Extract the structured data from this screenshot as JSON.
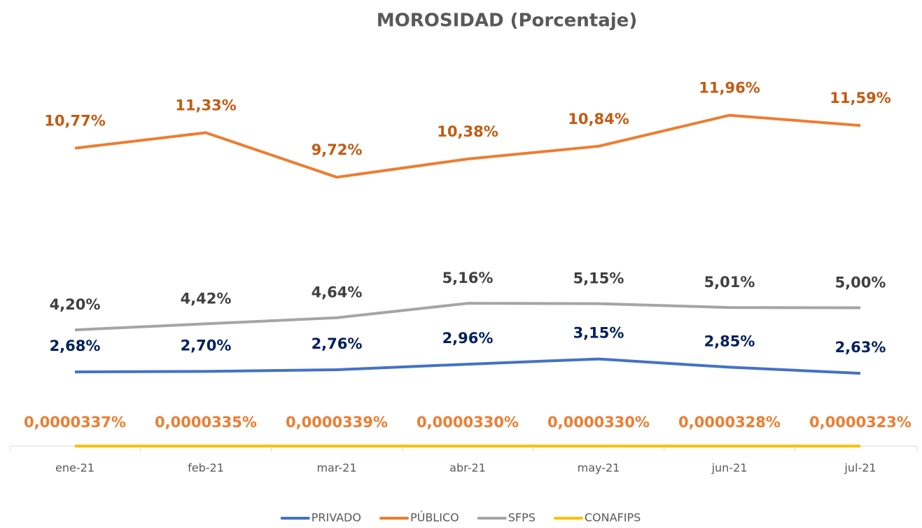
{
  "chart_data": {
    "type": "line",
    "title": "MOROSIDAD (Porcentaje)",
    "categories": [
      "ene-21",
      "feb-21",
      "mar-21",
      "abr-21",
      "may-21",
      "jun-21",
      "jul-21"
    ],
    "ylim": [
      0,
      14
    ],
    "legend": "bottom",
    "series": [
      {
        "name": "PRIVADO",
        "color": "#4472c4",
        "label_color": "#002060",
        "values": [
          2.68,
          2.7,
          2.76,
          2.96,
          3.15,
          2.85,
          2.63
        ],
        "value_labels": [
          "2,68%",
          "2,70%",
          "2,76%",
          "2,96%",
          "3,15%",
          "2,85%",
          "2,63%"
        ]
      },
      {
        "name": "PÚBLICO",
        "color": "#ed7d31",
        "label_color": "#c55a11",
        "values": [
          10.77,
          11.33,
          9.72,
          10.38,
          10.84,
          11.96,
          11.59
        ],
        "value_labels": [
          "10,77%",
          "11,33%",
          "9,72%",
          "10,38%",
          "10,84%",
          "11,96%",
          "11,59%"
        ]
      },
      {
        "name": "SFPS",
        "color": "#a5a5a5",
        "label_color": "#404040",
        "values": [
          4.2,
          4.42,
          4.64,
          5.16,
          5.15,
          5.01,
          5.0
        ],
        "value_labels": [
          "4,20%",
          "4,42%",
          "4,64%",
          "5,16%",
          "5,15%",
          "5,01%",
          "5,00%"
        ]
      },
      {
        "name": "CONAFIPS",
        "color": "#ffc000",
        "label_color": "#ed7d31",
        "values": [
          3.37e-05,
          3.35e-05,
          3.39e-05,
          3.3e-05,
          3.3e-05,
          3.28e-05,
          3.23e-05
        ],
        "value_labels": [
          "0,0000337%",
          "0,0000335%",
          "0,0000339%",
          "0,0000330%",
          "0,0000330%",
          "0,0000328%",
          "0,0000323%"
        ]
      }
    ]
  }
}
